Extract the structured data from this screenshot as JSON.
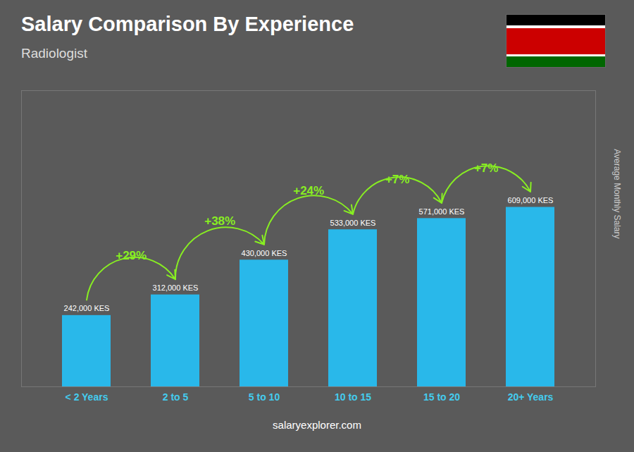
{
  "chart_data": {
    "type": "bar",
    "title": "Salary Comparison By Experience",
    "subtitle": "Radiologist",
    "categories": [
      "< 2 Years",
      "2 to 5",
      "5 to 10",
      "10 to 15",
      "15 to 20",
      "20+ Years"
    ],
    "values": [
      242000,
      312000,
      430000,
      533000,
      571000,
      609000
    ],
    "value_labels": [
      "242,000 KES",
      "312,000 KES",
      "430,000 KES",
      "533,000 KES",
      "571,000 KES",
      "609,000 KES"
    ],
    "data_labels": true,
    "color": "#29b8ea",
    "ylim": [
      0,
      1004850
    ],
    "ylabel": "Average Monthly Salary",
    "tick_labels": "x",
    "grid": false,
    "annotations": [
      {
        "text": "+29%",
        "color": "#88ee22"
      },
      {
        "text": "+38%",
        "color": "#88ee22"
      },
      {
        "text": "+24%",
        "color": "#88ee22"
      },
      {
        "text": "+7%",
        "color": "#88ee22"
      },
      {
        "text": "+7%",
        "color": "#88ee22"
      }
    ],
    "caption": "salaryexplorer.com"
  }
}
